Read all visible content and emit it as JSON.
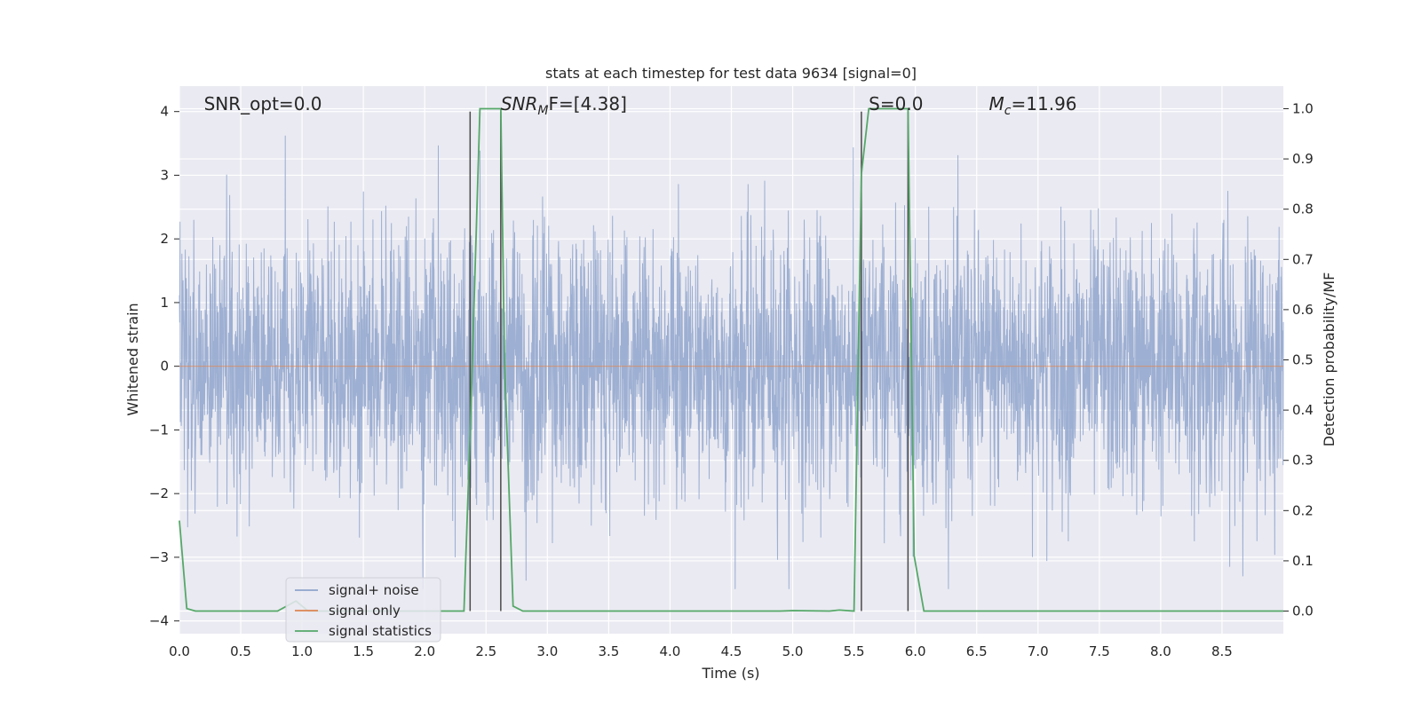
{
  "chart_data": {
    "type": "line",
    "title": "stats at each timestep for test data 9634 [signal=0]",
    "xlabel": "Time (s)",
    "ylabel": "Whitened strain",
    "ylabel_right": "Detection probability/MF",
    "xlim": [
      0.0,
      9.0
    ],
    "ylim": [
      -4.2,
      4.4
    ],
    "ylim_right": [
      -0.045,
      1.045
    ],
    "x_ticks": [
      "0.0",
      "0.5",
      "1.0",
      "1.5",
      "2.0",
      "2.5",
      "3.0",
      "3.5",
      "4.0",
      "4.5",
      "5.0",
      "5.5",
      "6.0",
      "6.5",
      "7.0",
      "7.5",
      "8.0",
      "8.5"
    ],
    "y_ticks_left": [
      "−4",
      "−3",
      "−2",
      "−1",
      "0",
      "1",
      "2",
      "3",
      "4"
    ],
    "y_ticks_right": [
      "0.0",
      "0.1",
      "0.2",
      "0.3",
      "0.4",
      "0.5",
      "0.6",
      "0.7",
      "0.8",
      "0.9",
      "1.0"
    ],
    "grid": true,
    "legend_position": "lower-left",
    "annotations": [
      {
        "text": "SNR_opt=0.0",
        "x": 0.2
      },
      {
        "text": "SNR",
        "sub": "M",
        "tail": "F=[4.38]",
        "x": 2.62
      },
      {
        "text": "S=0.0",
        "x": 5.62
      },
      {
        "text": "M",
        "sub": "c",
        "tail": "=11.96",
        "x": 6.6
      }
    ],
    "vertical_lines": [
      2.37,
      2.62,
      5.56,
      5.94
    ],
    "series": [
      {
        "name": "signal+ noise",
        "color": "#8fa4cc",
        "description_values": "noise strain between approx -3.5 and 4.0",
        "seed": 9634
      },
      {
        "name": "signal only",
        "color": "#dd8452",
        "x": [
          0.0,
          9.0
        ],
        "y": [
          0.0,
          0.0
        ]
      },
      {
        "name": "signal statistics",
        "color": "#55a868",
        "x": [
          0.0,
          0.06,
          0.13,
          0.8,
          0.95,
          1.05,
          2.32,
          2.37,
          2.45,
          2.62,
          2.65,
          2.72,
          2.8,
          4.9,
          5.0,
          5.3,
          5.38,
          5.5,
          5.56,
          5.62,
          5.94,
          5.99,
          6.07,
          9.0
        ],
        "y": [
          0.18,
          0.005,
          0.0,
          0.0,
          0.02,
          0.0,
          0.0,
          0.35,
          1.0,
          1.0,
          0.5,
          0.01,
          0.0,
          0.0,
          0.001,
          0.0,
          0.002,
          0.0,
          0.87,
          1.0,
          1.0,
          0.11,
          0.0,
          0.0
        ]
      }
    ]
  }
}
